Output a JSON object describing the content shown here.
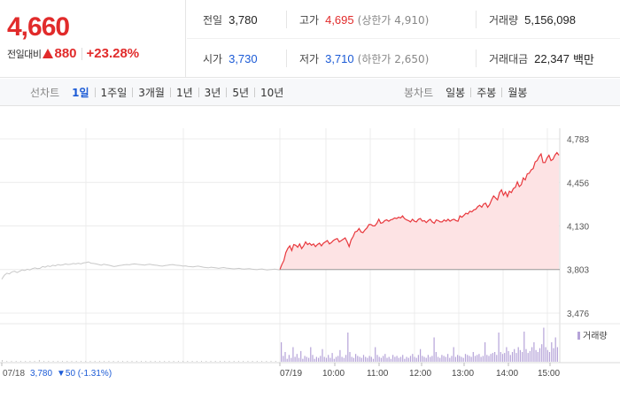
{
  "header": {
    "current_price": "4,660",
    "change_label": "전일대비",
    "change_amount": "880",
    "change_percent": "+23.28%",
    "up_color": "#e12b2b",
    "down_color": "#1c5bd6"
  },
  "stats": {
    "prev_close": {
      "label": "전일",
      "value": "3,780"
    },
    "high": {
      "label": "고가",
      "value": "4,695",
      "sub": "(상한가 4,910)"
    },
    "volume": {
      "label": "거래량",
      "value": "5,156,098"
    },
    "open": {
      "label": "시가",
      "value": "3,730"
    },
    "low": {
      "label": "저가",
      "value": "3,710",
      "sub": "(하한가 2,650)"
    },
    "amount": {
      "label": "거래대금",
      "value": "22,347",
      "unit": "백만"
    }
  },
  "line_chart_tabs": {
    "title": "선차트",
    "items": [
      "1일",
      "1주일",
      "3개월",
      "1년",
      "3년",
      "5년",
      "10년"
    ],
    "active": "1일"
  },
  "candle_chart_tabs": {
    "title": "봉차트",
    "items": [
      "일봉",
      "주봉",
      "월봉"
    ]
  },
  "chart_data": {
    "type": "line",
    "y_ticks": [
      "4,783",
      "4,456",
      "4,130",
      "3,803",
      "3,476"
    ],
    "y_tick_values": [
      4783,
      4456,
      4130,
      3803,
      3476
    ],
    "ylim": [
      3476,
      4783
    ],
    "baseline": 3803,
    "grid": true,
    "prev_day": {
      "date": "07/18",
      "info_price": "3,780",
      "info_change": "▼50 (-1.31%)",
      "line_color": "#c8c8c8",
      "series": [
        3730,
        3760,
        3775,
        3770,
        3785,
        3790,
        3780,
        3790,
        3800,
        3795,
        3805,
        3800,
        3810,
        3815,
        3810,
        3812,
        3825,
        3820,
        3830,
        3825,
        3835,
        3830,
        3840,
        3835,
        3838,
        3845,
        3840,
        3842,
        3848,
        3845,
        3850,
        3845,
        3852,
        3855,
        3860,
        3850,
        3848,
        3845,
        3840,
        3835,
        3842,
        3838,
        3835,
        3830,
        3825,
        3828,
        3832,
        3835,
        3838,
        3840,
        3838,
        3842,
        3845,
        3842,
        3840,
        3838,
        3836,
        3840,
        3842,
        3838,
        3836,
        3834,
        3830,
        3828,
        3832,
        3835,
        3838,
        3840,
        3836,
        3834,
        3832,
        3828,
        3830,
        3826,
        3824,
        3822,
        3826,
        3828,
        3824,
        3820,
        3818,
        3816,
        3820,
        3818,
        3815,
        3812,
        3815,
        3818,
        3814,
        3812,
        3810,
        3808,
        3810,
        3812,
        3808,
        3806,
        3808,
        3810,
        3806,
        3804,
        3802,
        3805,
        3807,
        3803,
        3800,
        3802,
        3804,
        3806,
        3803,
        3800
      ]
    },
    "today": {
      "date": "07/19",
      "x_ticks": [
        "07/19",
        "10:00",
        "11:00",
        "12:00",
        "13:00",
        "14:00",
        "15:00"
      ],
      "line_color": "#e8383d",
      "fill_color": "#fde3e4",
      "series": [
        3803,
        3840,
        3870,
        3930,
        3960,
        3980,
        3945,
        3990,
        3985,
        3970,
        3995,
        3960,
        3980,
        4010,
        3990,
        4000,
        3985,
        3995,
        3975,
        3990,
        4000,
        3980,
        4000,
        4010,
        4020,
        3995,
        4005,
        4020,
        4030,
        4035,
        4010,
        4020,
        4030,
        4040,
        4010,
        3975,
        4025,
        4050,
        4085,
        4090,
        4110,
        4085,
        4080,
        4100,
        4115,
        4140,
        4140,
        4130,
        4130,
        4150,
        4180,
        4150,
        4155,
        4170,
        4175,
        4165,
        4175,
        4180,
        4190,
        4185,
        4195,
        4190,
        4205,
        4185,
        4175,
        4170,
        4160,
        4180,
        4165,
        4160,
        4180,
        4185,
        4165,
        4170,
        4155,
        4170,
        4180,
        4160,
        4150,
        4175,
        4170,
        4160,
        4160,
        4175,
        4165,
        4180,
        4165,
        4175,
        4180,
        4170,
        4165,
        4205,
        4195,
        4210,
        4225,
        4220,
        4240,
        4235,
        4250,
        4255,
        4275,
        4285,
        4270,
        4295,
        4300,
        4270,
        4290,
        4325,
        4355,
        4340,
        4325,
        4380,
        4400,
        4360,
        4385,
        4350,
        4390,
        4380,
        4410,
        4420,
        4460,
        4425,
        4440,
        4490,
        4475,
        4520,
        4525,
        4550,
        4560,
        4610,
        4620,
        4650,
        4670,
        4605,
        4605,
        4640,
        4660,
        4620,
        4630,
        4660,
        4680,
        4660
      ]
    },
    "volume": {
      "label": "거래량",
      "color": "#b5a3d8",
      "prev_day_series": [
        2,
        1,
        1,
        1,
        1,
        1,
        1,
        1,
        2,
        1,
        1,
        1,
        1,
        1,
        1,
        1,
        1,
        1,
        1,
        1,
        1,
        1,
        1,
        1,
        1,
        1,
        1,
        1,
        1,
        1,
        1,
        1,
        1,
        1,
        1,
        1,
        1,
        1,
        1,
        1,
        1,
        1,
        1,
        1,
        1,
        1,
        1,
        1,
        1,
        1,
        1,
        1,
        1,
        1,
        1,
        1,
        1,
        1,
        1,
        1
      ],
      "today_series": [
        40,
        12,
        20,
        6,
        14,
        8,
        30,
        10,
        16,
        8,
        22,
        6,
        12,
        10,
        8,
        30,
        14,
        6,
        10,
        8,
        12,
        26,
        10,
        8,
        14,
        8,
        18,
        6,
        10,
        12,
        24,
        10,
        8,
        14,
        60,
        20,
        10,
        8,
        16,
        12,
        10,
        8,
        14,
        10,
        8,
        12,
        10,
        6,
        30,
        14,
        10,
        8,
        12,
        16,
        8,
        10,
        6,
        14,
        10,
        12,
        8,
        10,
        14,
        6,
        10,
        8,
        12,
        16,
        10,
        8,
        14,
        26,
        12,
        10,
        8,
        14,
        10,
        12,
        50,
        20,
        10,
        8,
        14,
        12,
        10,
        16,
        8,
        12,
        30,
        10,
        14,
        12,
        10,
        8,
        16,
        14,
        12,
        10,
        20,
        12,
        14,
        16,
        10,
        12,
        40,
        14,
        12,
        16,
        18,
        20,
        14,
        60,
        20,
        16,
        18,
        30,
        22,
        14,
        20,
        26,
        18,
        30,
        24,
        20,
        62,
        26,
        18,
        22,
        30,
        40,
        24,
        20,
        28,
        36,
        70,
        30,
        24,
        20,
        40,
        28,
        50,
        30
      ]
    }
  }
}
